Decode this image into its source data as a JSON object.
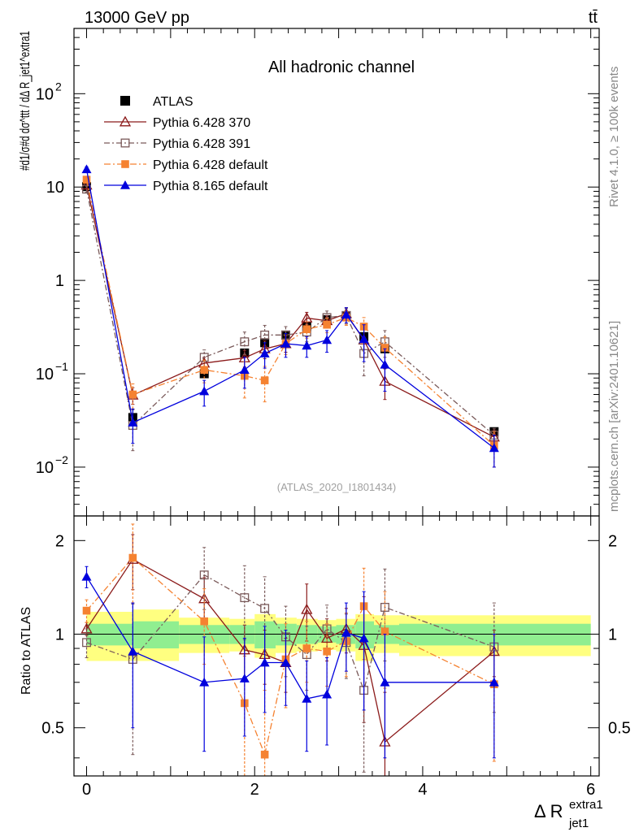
{
  "header": {
    "energy_label": "13000 GeV pp",
    "process_label": "tt̄",
    "channel_title": "All hadronic channel",
    "watermark": "(ATLAS_2020_I1801434)",
    "side_rivet": "Rivet 4.1.0, ≥ 100k events",
    "side_mcplots": "mcplots.cern.ch [arXiv:2401.10621]"
  },
  "colors": {
    "ATLAS": "#000000",
    "Pythia 6.428 370": "#8b1a1a",
    "Pythia 6.428 391": "#7a5a5a",
    "Pythia 6.428 default": "#f58231",
    "Pythia 8.165 default": "#0000dd",
    "band_inner": "#90ee90",
    "band_outer": "#ffff80"
  },
  "chart_data": {
    "type": "line",
    "log_y": true,
    "xlim": [
      -0.15,
      6.1
    ],
    "ylim_main": [
      0.003,
      500
    ],
    "ylim_ratio": [
      0.35,
      2.4
    ],
    "main_y_label": "#d1/σ#d dσ^ttt / dΔ R_jet1^extra1",
    "ratio_y_label": "Ratio to ATLAS",
    "x_label": "Δ R",
    "x_label_sup": "extra1",
    "x_label_sub": "jet1",
    "x_ticks": [
      "0",
      "2",
      "4",
      "6"
    ],
    "main_y_ticks": [
      {
        "value": 0.01,
        "base": "10",
        "exp": "−2"
      },
      {
        "value": 0.1,
        "base": "10",
        "exp": "−1"
      },
      {
        "value": 1,
        "base": "1",
        "exp": ""
      },
      {
        "value": 10,
        "base": "10",
        "exp": ""
      },
      {
        "value": 100,
        "base": "10",
        "exp": "2"
      }
    ],
    "ratio_y_ticks": [
      {
        "value": 0.5,
        "label": "0.5"
      },
      {
        "value": 1,
        "label": "1"
      },
      {
        "value": 2,
        "label": "2"
      }
    ],
    "x": [
      0,
      0.55,
      1.4,
      1.88,
      2.12,
      2.37,
      2.62,
      2.86,
      3.09,
      3.3,
      3.55,
      4.85
    ],
    "atlas": {
      "name": "ATLAS",
      "values": [
        10.1,
        0.034,
        0.1,
        0.167,
        0.215,
        0.26,
        0.32,
        0.38,
        0.42,
        0.25,
        0.185,
        0.024
      ],
      "bands": [
        {
          "x0": 0.0,
          "x1": 0.55,
          "in_lo": 0.92,
          "in_hi": 1.08,
          "out_lo": 0.82,
          "out_hi": 1.18
        },
        {
          "x0": 0.55,
          "x1": 1.1,
          "in_lo": 0.9,
          "in_hi": 1.1,
          "out_lo": 0.82,
          "out_hi": 1.2
        },
        {
          "x0": 1.1,
          "x1": 1.7,
          "in_lo": 0.93,
          "in_hi": 1.07,
          "out_lo": 0.87,
          "out_hi": 1.13
        },
        {
          "x0": 1.7,
          "x1": 2.0,
          "in_lo": 0.93,
          "in_hi": 1.07,
          "out_lo": 0.88,
          "out_hi": 1.12
        },
        {
          "x0": 2.0,
          "x1": 2.25,
          "in_lo": 0.9,
          "in_hi": 1.1,
          "out_lo": 0.84,
          "out_hi": 1.16
        },
        {
          "x0": 2.25,
          "x1": 2.5,
          "in_lo": 0.92,
          "in_hi": 1.08,
          "out_lo": 0.87,
          "out_hi": 1.13
        },
        {
          "x0": 2.5,
          "x1": 2.75,
          "in_lo": 0.93,
          "in_hi": 1.07,
          "out_lo": 0.88,
          "out_hi": 1.12
        },
        {
          "x0": 2.75,
          "x1": 2.97,
          "in_lo": 0.94,
          "in_hi": 1.06,
          "out_lo": 0.89,
          "out_hi": 1.11
        },
        {
          "x0": 2.97,
          "x1": 3.2,
          "in_lo": 0.93,
          "in_hi": 1.07,
          "out_lo": 0.88,
          "out_hi": 1.12
        },
        {
          "x0": 3.2,
          "x1": 3.42,
          "in_lo": 0.9,
          "in_hi": 1.1,
          "out_lo": 0.82,
          "out_hi": 1.16
        },
        {
          "x0": 3.42,
          "x1": 3.72,
          "in_lo": 0.93,
          "in_hi": 1.07,
          "out_lo": 0.87,
          "out_hi": 1.15
        },
        {
          "x0": 3.72,
          "x1": 6.0,
          "in_lo": 0.92,
          "in_hi": 1.08,
          "out_lo": 0.85,
          "out_hi": 1.15
        }
      ]
    },
    "series": [
      {
        "name": "Pythia 6.428 370",
        "marker": "triangle-open",
        "dash": "",
        "values": [
          10.5,
          0.059,
          0.13,
          0.148,
          0.185,
          0.21,
          0.395,
          0.37,
          0.44,
          0.23,
          0.083,
          0.021
        ],
        "err_lo": [
          0.8,
          0.012,
          0.02,
          0.03,
          0.04,
          0.04,
          0.06,
          0.05,
          0.07,
          0.08,
          0.03,
          0.004
        ],
        "err_hi": [
          0.8,
          0.012,
          0.02,
          0.03,
          0.04,
          0.04,
          0.06,
          0.05,
          0.07,
          0.08,
          0.03,
          0.004
        ],
        "ratio": [
          1.04,
          1.74,
          1.3,
          0.89,
          0.86,
          0.81,
          1.2,
          0.97,
          1.04,
          0.92,
          0.45,
          0.88
        ],
        "ratio_lo": [
          0.05,
          0.35,
          0.22,
          0.18,
          0.17,
          0.16,
          0.25,
          0.15,
          0.17,
          0.4,
          0.2,
          0.15
        ],
        "ratio_hi": [
          0.05,
          0.35,
          0.22,
          0.18,
          0.17,
          0.16,
          0.25,
          0.15,
          0.17,
          0.4,
          0.2,
          0.15
        ]
      },
      {
        "name": "Pythia 6.428 391",
        "marker": "square-open",
        "dash": "7,3,2,3",
        "values": [
          9.5,
          0.028,
          0.15,
          0.22,
          0.26,
          0.26,
          0.28,
          0.4,
          0.42,
          0.165,
          0.22,
          0.022
        ],
        "err_lo": [
          0.7,
          0.013,
          0.03,
          0.06,
          0.07,
          0.06,
          0.06,
          0.07,
          0.08,
          0.07,
          0.07,
          0.004
        ],
        "err_hi": [
          0.7,
          0.013,
          0.03,
          0.06,
          0.07,
          0.06,
          0.06,
          0.07,
          0.08,
          0.07,
          0.07,
          0.004
        ],
        "ratio": [
          0.94,
          0.83,
          1.55,
          1.31,
          1.21,
          0.98,
          0.86,
          1.04,
          0.94,
          0.66,
          1.22,
          0.91
        ],
        "ratio_lo": [
          0.1,
          0.42,
          0.35,
          0.35,
          0.32,
          0.25,
          0.2,
          0.2,
          0.22,
          0.3,
          0.4,
          0.35
        ],
        "ratio_hi": [
          0.1,
          0.42,
          0.35,
          0.35,
          0.32,
          0.25,
          0.2,
          0.2,
          0.22,
          0.3,
          0.4,
          0.35
        ]
      },
      {
        "name": "Pythia 6.428 default",
        "marker": "square-filled",
        "dash": "8,3,2,3",
        "values": [
          12.0,
          0.06,
          0.11,
          0.095,
          0.085,
          0.21,
          0.3,
          0.335,
          0.4,
          0.32,
          0.19,
          0.017
        ],
        "err_lo": [
          0.8,
          0.018,
          0.03,
          0.04,
          0.035,
          0.05,
          0.06,
          0.06,
          0.07,
          0.08,
          0.06,
          0.007
        ],
        "err_hi": [
          0.8,
          0.018,
          0.03,
          0.04,
          0.035,
          0.05,
          0.06,
          0.06,
          0.07,
          0.08,
          0.06,
          0.007
        ],
        "ratio": [
          1.19,
          1.76,
          1.1,
          0.6,
          0.41,
          0.83,
          0.9,
          0.88,
          0.95,
          1.23,
          1.02,
          0.69
        ],
        "ratio_lo": [
          0.1,
          0.5,
          0.3,
          0.25,
          0.25,
          0.25,
          0.2,
          0.2,
          0.22,
          0.4,
          0.35,
          0.3
        ],
        "ratio_hi": [
          0.1,
          0.5,
          0.3,
          0.25,
          0.25,
          0.25,
          0.2,
          0.2,
          0.22,
          0.4,
          0.35,
          0.3
        ]
      },
      {
        "name": "Pythia 8.165 default",
        "marker": "triangle-filled",
        "dash": "",
        "values": [
          15.5,
          0.03,
          0.065,
          0.11,
          0.165,
          0.21,
          0.2,
          0.23,
          0.43,
          0.235,
          0.125,
          0.016
        ],
        "err_lo": [
          1.0,
          0.012,
          0.02,
          0.04,
          0.05,
          0.06,
          0.05,
          0.06,
          0.08,
          0.1,
          0.06,
          0.006
        ],
        "err_hi": [
          1.0,
          0.012,
          0.02,
          0.04,
          0.05,
          0.06,
          0.05,
          0.06,
          0.08,
          0.1,
          0.06,
          0.006
        ],
        "ratio": [
          1.53,
          0.88,
          0.7,
          0.72,
          0.81,
          0.81,
          0.62,
          0.64,
          1.01,
          0.97,
          0.7,
          0.7
        ],
        "ratio_lo": [
          0.12,
          0.38,
          0.28,
          0.25,
          0.25,
          0.22,
          0.2,
          0.2,
          0.25,
          0.4,
          0.3,
          0.3
        ],
        "ratio_hi": [
          0.12,
          0.38,
          0.28,
          0.25,
          0.25,
          0.22,
          0.2,
          0.2,
          0.25,
          0.4,
          0.3,
          0.3
        ]
      }
    ]
  }
}
